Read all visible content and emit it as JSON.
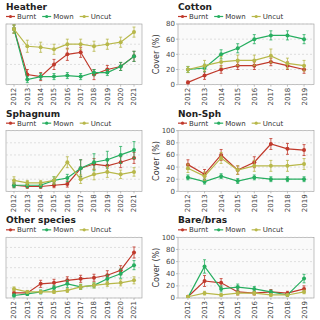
{
  "chart_data": [
    {
      "type": "line",
      "title": "Heather",
      "marker": "circle",
      "grid": true,
      "legend": "upper left",
      "tick_labels": "x",
      "x": [
        2012,
        2013,
        2014,
        2015,
        2016,
        2017,
        2018,
        2019,
        2020,
        2021
      ],
      "xlim": [
        2011.4,
        2021.6
      ],
      "xticks": [
        2012,
        2013,
        2014,
        2015,
        2016,
        2017,
        2018,
        2019,
        2020,
        2021
      ],
      "ylim": [
        0,
        60
      ],
      "yticks": [
        0,
        20,
        40,
        60
      ],
      "series": [
        {
          "name": "Burnt",
          "color": "#c0392b",
          "values": [
            55,
            10,
            8,
            20,
            30,
            32,
            10,
            15,
            18,
            28
          ],
          "errors": [
            4,
            5,
            4,
            5,
            6,
            5,
            5,
            4,
            4,
            5
          ]
        },
        {
          "name": "Mown",
          "color": "#27ae60",
          "values": [
            55,
            5,
            8,
            8,
            9,
            8,
            12,
            12,
            18,
            28
          ],
          "errors": [
            4,
            3,
            3,
            3,
            3,
            3,
            3,
            3,
            4,
            5
          ]
        },
        {
          "name": "Uncut",
          "color": "#b8b84a",
          "values": [
            55,
            38,
            37,
            35,
            40,
            40,
            38,
            40,
            42,
            52
          ],
          "errors": [
            4,
            6,
            5,
            5,
            5,
            5,
            5,
            5,
            5,
            5
          ]
        }
      ]
    },
    {
      "type": "line",
      "title": "Cotton",
      "y_label": "Cover (%)",
      "marker": "circle",
      "grid": true,
      "legend": "upper left",
      "x": [
        2012,
        2013,
        2014,
        2015,
        2016,
        2017,
        2018,
        2019
      ],
      "xlim": [
        2011.4,
        2019.6
      ],
      "xticks": [
        2012,
        2013,
        2014,
        2015,
        2016,
        2017,
        2018,
        2019
      ],
      "ylim": [
        0,
        80
      ],
      "yticks": [
        0,
        20,
        40,
        60,
        80
      ],
      "series": [
        {
          "name": "Burnt",
          "color": "#c0392b",
          "values": [
            3,
            12,
            20,
            25,
            25,
            30,
            25,
            20
          ],
          "errors": [
            2,
            5,
            5,
            5,
            5,
            5,
            5,
            5
          ]
        },
        {
          "name": "Mown",
          "color": "#27ae60",
          "values": [
            20,
            22,
            40,
            48,
            60,
            65,
            65,
            60
          ],
          "errors": [
            4,
            5,
            6,
            6,
            6,
            6,
            6,
            6
          ]
        },
        {
          "name": "Uncut",
          "color": "#b8b84a",
          "values": [
            20,
            25,
            30,
            32,
            32,
            38,
            28,
            25
          ],
          "errors": [
            4,
            7,
            7,
            7,
            7,
            9,
            7,
            7
          ]
        }
      ]
    },
    {
      "type": "line",
      "title": "Sphagnum",
      "marker": "circle",
      "grid": true,
      "legend": "upper left",
      "tick_labels": "x",
      "x": [
        2012,
        2013,
        2014,
        2015,
        2016,
        2017,
        2018,
        2019,
        2020,
        2021
      ],
      "xlim": [
        2011.4,
        2021.6
      ],
      "xticks": [
        2012,
        2013,
        2014,
        2015,
        2016,
        2017,
        2018,
        2019,
        2020,
        2021
      ],
      "ylim": [
        0,
        100
      ],
      "yticks": [
        0,
        20,
        40,
        60,
        80,
        100
      ],
      "series": [
        {
          "name": "Burnt",
          "color": "#c0392b",
          "values": [
            10,
            8,
            8,
            10,
            12,
            38,
            45,
            42,
            48,
            55
          ],
          "errors": [
            4,
            3,
            3,
            4,
            5,
            14,
            9,
            9,
            9,
            9
          ]
        },
        {
          "name": "Mown",
          "color": "#27ae60",
          "values": [
            10,
            10,
            10,
            18,
            22,
            38,
            48,
            52,
            60,
            68
          ],
          "errors": [
            4,
            4,
            4,
            6,
            6,
            14,
            14,
            14,
            14,
            14
          ]
        },
        {
          "name": "Uncut",
          "color": "#b8b84a",
          "values": [
            18,
            14,
            14,
            18,
            48,
            20,
            28,
            32,
            28,
            32
          ],
          "errors": [
            6,
            4,
            4,
            6,
            9,
            7,
            9,
            9,
            7,
            7
          ]
        }
      ]
    },
    {
      "type": "line",
      "title": "Non-Sph",
      "y_label": "Cover (%)",
      "marker": "circle",
      "grid": true,
      "legend": "upper left",
      "x": [
        2012,
        2013,
        2014,
        2015,
        2016,
        2017,
        2018,
        2019
      ],
      "xlim": [
        2011.4,
        2019.6
      ],
      "xticks": [
        2012,
        2013,
        2014,
        2015,
        2016,
        2017,
        2018,
        2019
      ],
      "ylim": [
        0,
        100
      ],
      "yticks": [
        0,
        20,
        40,
        60,
        80,
        100
      ],
      "series": [
        {
          "name": "Burnt",
          "color": "#c0392b",
          "values": [
            44,
            28,
            60,
            35,
            48,
            78,
            70,
            68
          ],
          "errors": [
            8,
            8,
            9,
            7,
            9,
            9,
            9,
            9
          ]
        },
        {
          "name": "Mown",
          "color": "#27ae60",
          "values": [
            23,
            16,
            25,
            17,
            23,
            20,
            20,
            20
          ],
          "errors": [
            4,
            4,
            4,
            4,
            4,
            4,
            4,
            4
          ]
        },
        {
          "name": "Uncut",
          "color": "#b8b84a",
          "values": [
            38,
            25,
            55,
            35,
            42,
            42,
            42,
            45
          ],
          "errors": [
            7,
            7,
            9,
            7,
            9,
            9,
            9,
            9
          ]
        }
      ]
    },
    {
      "type": "line",
      "title": "Other species",
      "marker": "circle",
      "grid": true,
      "legend": "upper left",
      "tick_labels": "x",
      "x": [
        2012,
        2013,
        2014,
        2015,
        2016,
        2017,
        2018,
        2019,
        2020,
        2021
      ],
      "xlim": [
        2011.4,
        2021.6
      ],
      "xticks": [
        2012,
        2013,
        2014,
        2015,
        2016,
        2017,
        2018,
        2019,
        2020,
        2021
      ],
      "ylim": [
        0,
        120
      ],
      "yticks": [
        0,
        20,
        40,
        60,
        80,
        100,
        120
      ],
      "series": [
        {
          "name": "Burnt",
          "color": "#c0392b",
          "values": [
            10,
            10,
            28,
            30,
            35,
            38,
            40,
            45,
            55,
            90
          ],
          "errors": [
            4,
            4,
            7,
            7,
            7,
            7,
            7,
            9,
            9,
            11
          ]
        },
        {
          "name": "Mown",
          "color": "#27ae60",
          "values": [
            5,
            8,
            12,
            20,
            28,
            22,
            25,
            38,
            48,
            65
          ],
          "errors": [
            3,
            3,
            4,
            5,
            7,
            5,
            5,
            7,
            9,
            9
          ]
        },
        {
          "name": "Uncut",
          "color": "#b8b84a",
          "values": [
            18,
            12,
            12,
            12,
            15,
            22,
            25,
            28,
            30,
            35
          ],
          "errors": [
            4,
            3,
            3,
            3,
            4,
            5,
            5,
            5,
            6,
            7
          ]
        }
      ]
    },
    {
      "type": "line",
      "title": "Bare/bras",
      "y_label": "Cover (%)",
      "marker": "circle",
      "grid": true,
      "legend": "upper left",
      "x": [
        2012,
        2013,
        2014,
        2015,
        2016,
        2017,
        2018,
        2019
      ],
      "xlim": [
        2011.4,
        2019.6
      ],
      "xticks": [
        2012,
        2013,
        2014,
        2015,
        2016,
        2017,
        2018,
        2019
      ],
      "ylim": [
        0,
        100
      ],
      "yticks": [
        0,
        20,
        40,
        60,
        80,
        100
      ],
      "series": [
        {
          "name": "Burnt",
          "color": "#c0392b",
          "values": [
            2,
            28,
            25,
            10,
            8,
            10,
            8,
            15
          ],
          "errors": [
            1,
            9,
            7,
            5,
            3,
            4,
            3,
            5
          ]
        },
        {
          "name": "Mown",
          "color": "#27ae60",
          "values": [
            1,
            52,
            15,
            18,
            15,
            10,
            5,
            32
          ],
          "errors": [
            1,
            11,
            5,
            5,
            4,
            3,
            2,
            7
          ]
        },
        {
          "name": "Uncut",
          "color": "#b8b84a",
          "values": [
            2,
            8,
            5,
            8,
            8,
            5,
            5,
            10
          ],
          "errors": [
            1,
            3,
            2,
            3,
            3,
            2,
            2,
            3
          ]
        }
      ]
    }
  ]
}
